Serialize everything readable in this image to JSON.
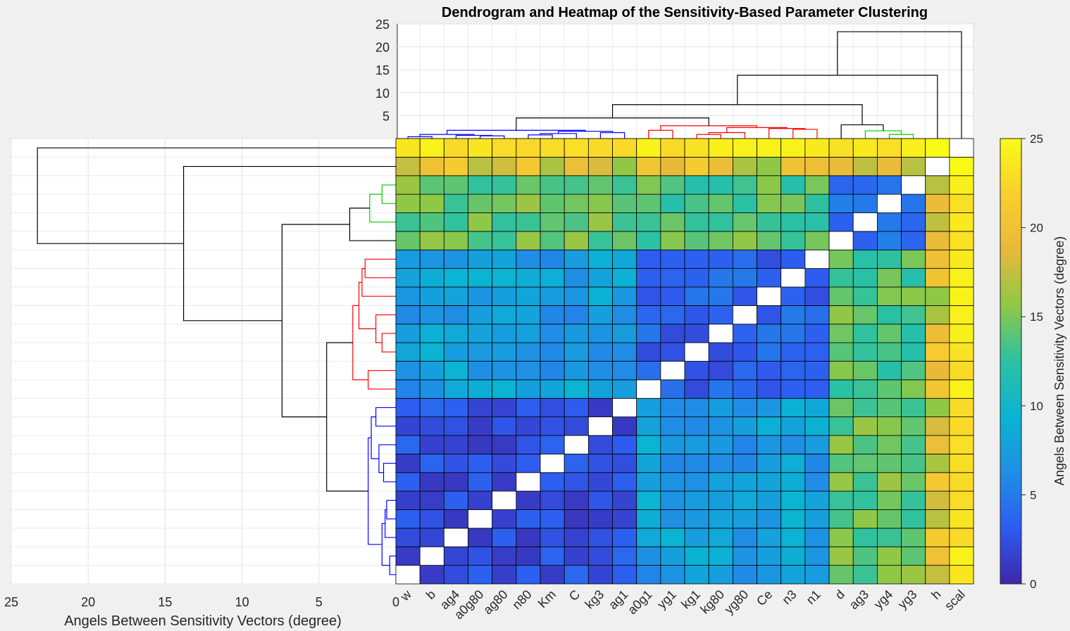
{
  "chart_data": {
    "type": "heatmap",
    "title": "Dendrogram and Heatmap of the Sensitivity-Based Parameter Clustering",
    "xlabel": "Angels Between Sensitivity Vectors (degree)",
    "colorbar_label": "Angels Between Sensitivity Vectors (degree)",
    "colormap": "parula",
    "clim": [
      0,
      25
    ],
    "colorbar_ticks": [
      0,
      5,
      10,
      15,
      20,
      25
    ],
    "grid": true,
    "parameters": [
      "w",
      "b",
      "ag4",
      "a0g80",
      "ag80",
      "n80",
      "Km",
      "C",
      "kg3",
      "ag1",
      "a0g1",
      "yg1",
      "kg1",
      "kg80",
      "yg80",
      "Ce",
      "n3",
      "n1",
      "d",
      "ag3",
      "yg4",
      "yg3",
      "h",
      "scal"
    ],
    "groups": [
      0,
      0,
      0,
      0,
      0,
      0,
      0,
      0,
      0,
      0,
      1,
      1,
      1,
      1,
      1,
      1,
      1,
      1,
      2,
      2,
      2,
      2,
      3,
      4
    ],
    "group_angle_levels": [
      [
        2.5,
        7.5,
        14.5
      ],
      [
        7.5,
        3.5,
        13.8
      ],
      [
        14.5,
        13.8,
        4.5
      ]
    ],
    "h_angle_level": 18.5,
    "scal_angle_level": 22.5,
    "h_scal_angle": 25,
    "top_dendrogram": {
      "ylim": [
        0,
        25
      ],
      "yticks": [
        5,
        10,
        15,
        20,
        25
      ],
      "links": [
        {
          "left": "blue_group",
          "right": "red_group",
          "height": 4.5,
          "color": "black"
        },
        {
          "left": "blue_red",
          "right": "green_group",
          "height": 7.4,
          "color": "black"
        },
        {
          "left": "bgr",
          "right": "h",
          "height": 13.8,
          "color": "black"
        },
        {
          "left": "bgrh",
          "right": "scal",
          "height": 23.3,
          "color": "black"
        },
        {
          "cluster": "blue_group",
          "max_height": 1.8,
          "color": "blue"
        },
        {
          "cluster": "red_group",
          "max_height": 2.8,
          "color": "red"
        },
        {
          "cluster": "green_group",
          "max_height": 1.8,
          "color": "green"
        }
      ]
    },
    "left_dendrogram": {
      "xlim": [
        25,
        0
      ],
      "xticks": [
        25,
        20,
        15,
        10,
        5,
        0
      ],
      "orientation": "mirror of top dendrogram"
    }
  }
}
